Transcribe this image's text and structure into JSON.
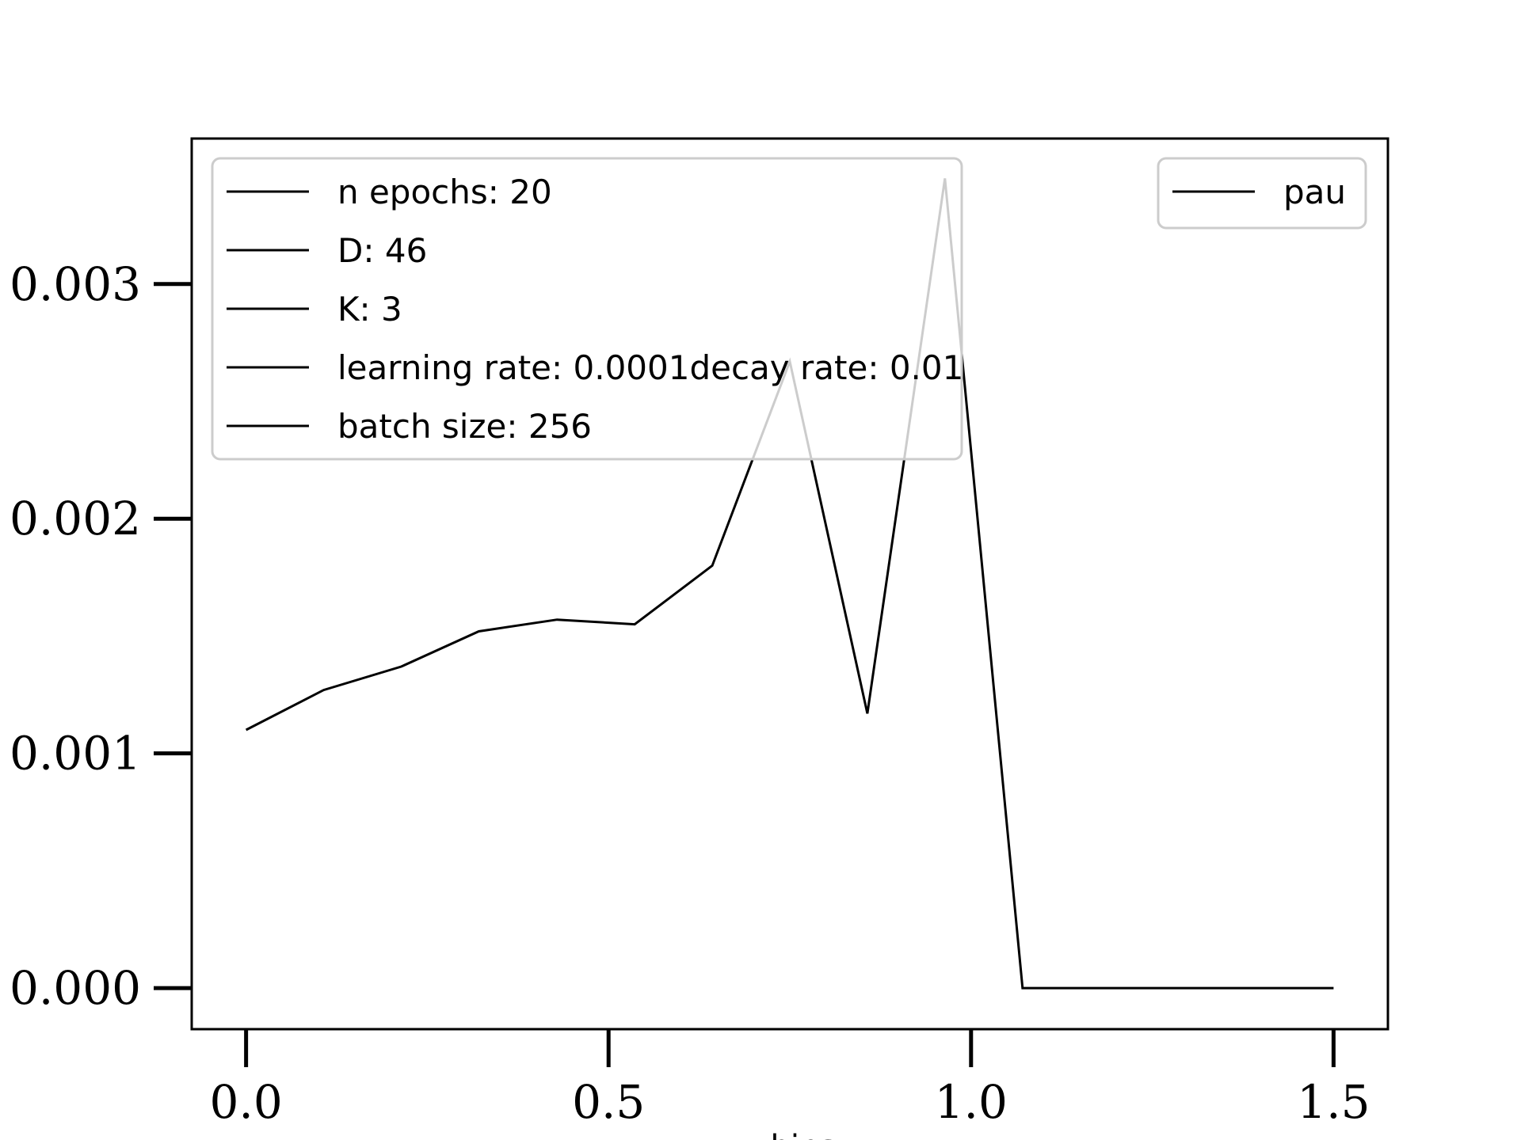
{
  "chart_data": {
    "type": "line",
    "xlabel": "z bins",
    "ylabel": "",
    "xlim": [
      -0.075,
      1.575
    ],
    "ylim": [
      -0.000175,
      0.00362
    ],
    "xticks": [
      {
        "value": 0.0,
        "label": "0.0"
      },
      {
        "value": 0.5,
        "label": "0.5"
      },
      {
        "value": 1.0,
        "label": "1.0"
      },
      {
        "value": 1.5,
        "label": "1.5"
      }
    ],
    "yticks": [
      {
        "value": 0.0,
        "label": "0.000"
      },
      {
        "value": 0.001,
        "label": "0.001"
      },
      {
        "value": 0.002,
        "label": "0.002"
      },
      {
        "value": 0.003,
        "label": "0.003"
      }
    ],
    "series": [
      {
        "name": "pau",
        "color": "#000000",
        "x": [
          0.0,
          0.107,
          0.214,
          0.321,
          0.429,
          0.536,
          0.643,
          0.75,
          0.857,
          0.964,
          1.071,
          1.179,
          1.286,
          1.393,
          1.5
        ],
        "y": [
          0.0011,
          0.00127,
          0.00137,
          0.00152,
          0.00157,
          0.00155,
          0.0018,
          0.00267,
          0.00117,
          0.00345,
          0.0,
          0.0,
          0.0,
          0.0,
          0.0
        ]
      }
    ],
    "legends": [
      {
        "placement": "upper-left",
        "entries": [
          "n epochs: 20",
          "D: 46",
          "K: 3",
          "learning rate: 0.0001decay rate: 0.01",
          "batch size: 256"
        ]
      },
      {
        "placement": "upper-right",
        "entries": [
          "pau"
        ]
      }
    ],
    "grid": false
  }
}
